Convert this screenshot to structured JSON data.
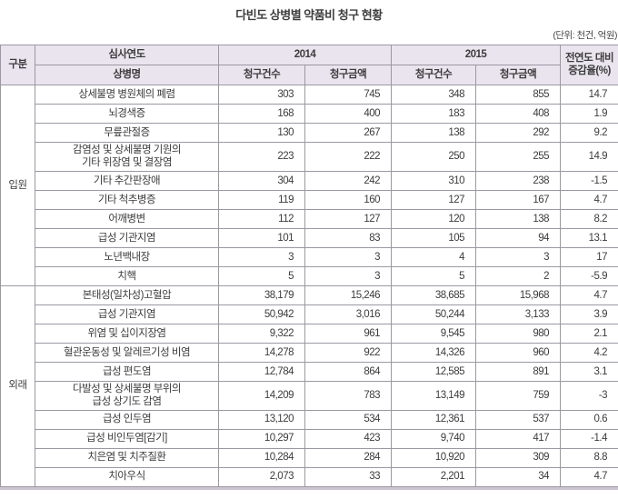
{
  "title": "다빈도 상병별 약품비 청구 현황",
  "unit_note": "(단위: 천건, 억원)",
  "table": {
    "headers": {
      "gubun": "구분",
      "review_year": "심사연도",
      "disease_name": "상병명",
      "year_2014": "2014",
      "year_2015": "2015",
      "claim_count": "청구건수",
      "claim_amount": "청구금액",
      "yoy_line1": "전연도 대비",
      "yoy_line2": "증감율(%)"
    },
    "sections": [
      {
        "label": "입원",
        "rows": [
          {
            "disease": "상세불명 병원체의 폐렴",
            "count_2014": "303",
            "amount_2014": "745",
            "count_2015": "348",
            "amount_2015": "855",
            "yoy": "14.7"
          },
          {
            "disease": "뇌경색증",
            "count_2014": "168",
            "amount_2014": "400",
            "count_2015": "183",
            "amount_2015": "408",
            "yoy": "1.9"
          },
          {
            "disease": "무릎관절증",
            "count_2014": "130",
            "amount_2014": "267",
            "count_2015": "138",
            "amount_2015": "292",
            "yoy": "9.2"
          },
          {
            "disease": "감염성 및 상세불명 기원의\n기타 위장염 및 결장염",
            "count_2014": "223",
            "amount_2014": "222",
            "count_2015": "250",
            "amount_2015": "255",
            "yoy": "14.9"
          },
          {
            "disease": "기타 추간판장애",
            "count_2014": "304",
            "amount_2014": "242",
            "count_2015": "310",
            "amount_2015": "238",
            "yoy": "-1.5"
          },
          {
            "disease": "기타 척추병증",
            "count_2014": "119",
            "amount_2014": "160",
            "count_2015": "127",
            "amount_2015": "167",
            "yoy": "4.7"
          },
          {
            "disease": "어깨병변",
            "count_2014": "112",
            "amount_2014": "127",
            "count_2015": "120",
            "amount_2015": "138",
            "yoy": "8.2"
          },
          {
            "disease": "급성 기관지염",
            "count_2014": "101",
            "amount_2014": "83",
            "count_2015": "105",
            "amount_2015": "94",
            "yoy": "13.1"
          },
          {
            "disease": "노년백내장",
            "count_2014": "3",
            "amount_2014": "3",
            "count_2015": "4",
            "amount_2015": "3",
            "yoy": "17"
          },
          {
            "disease": "치핵",
            "count_2014": "5",
            "amount_2014": "3",
            "count_2015": "5",
            "amount_2015": "2",
            "yoy": "-5.9"
          }
        ]
      },
      {
        "label": "외래",
        "rows": [
          {
            "disease": "본태성(일차성)고혈압",
            "count_2014": "38,179",
            "amount_2014": "15,246",
            "count_2015": "38,685",
            "amount_2015": "15,968",
            "yoy": "4.7"
          },
          {
            "disease": "급성 기관지염",
            "count_2014": "50,942",
            "amount_2014": "3,016",
            "count_2015": "50,244",
            "amount_2015": "3,133",
            "yoy": "3.9"
          },
          {
            "disease": "위염 및 십이지장염",
            "count_2014": "9,322",
            "amount_2014": "961",
            "count_2015": "9,545",
            "amount_2015": "980",
            "yoy": "2.1"
          },
          {
            "disease": "혈관운동성 및 알레르기성 비염",
            "count_2014": "14,278",
            "amount_2014": "922",
            "count_2015": "14,326",
            "amount_2015": "960",
            "yoy": "4.2"
          },
          {
            "disease": "급성 편도염",
            "count_2014": "12,784",
            "amount_2014": "864",
            "count_2015": "12,585",
            "amount_2015": "891",
            "yoy": "3.1"
          },
          {
            "disease": "다발성 및 상세불명 부위의\n급성 상기도 감염",
            "count_2014": "14,209",
            "amount_2014": "783",
            "count_2015": "13,149",
            "amount_2015": "759",
            "yoy": "-3"
          },
          {
            "disease": "급성 인두염",
            "count_2014": "13,120",
            "amount_2014": "534",
            "count_2015": "12,361",
            "amount_2015": "537",
            "yoy": "0.6"
          },
          {
            "disease": "급성 비인두염[감기]",
            "count_2014": "10,297",
            "amount_2014": "423",
            "count_2015": "9,740",
            "amount_2015": "417",
            "yoy": "-1.4"
          },
          {
            "disease": "치은염 및 치주질환",
            "count_2014": "10,284",
            "amount_2014": "284",
            "count_2015": "10,920",
            "amount_2015": "309",
            "yoy": "8.8"
          },
          {
            "disease": "치아우식",
            "count_2014": "2,073",
            "amount_2014": "33",
            "count_2015": "2,201",
            "amount_2015": "34",
            "yoy": "4.7"
          }
        ]
      }
    ]
  }
}
